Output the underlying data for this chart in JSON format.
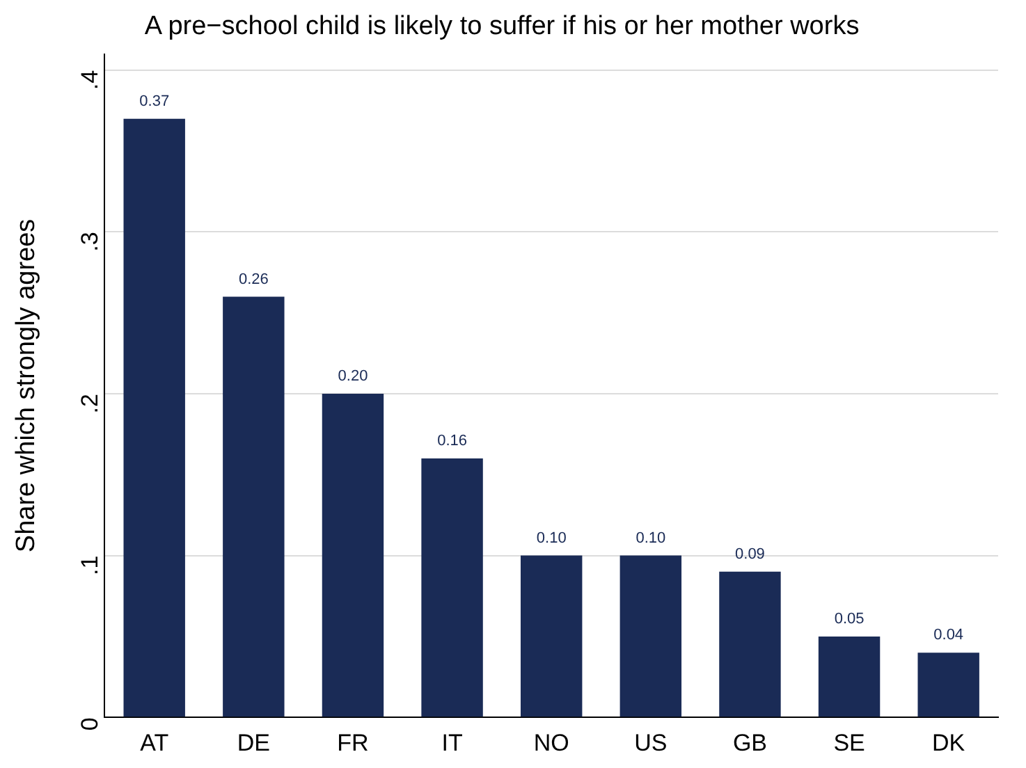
{
  "chart_data": {
    "type": "bar",
    "title": "A pre−school child is likely to suffer if his or her mother works",
    "ylabel": "Share which strongly agrees",
    "categories": [
      "AT",
      "DE",
      "FR",
      "IT",
      "NO",
      "US",
      "GB",
      "SE",
      "DK"
    ],
    "values": [
      0.37,
      0.26,
      0.2,
      0.16,
      0.1,
      0.1,
      0.09,
      0.05,
      0.04
    ],
    "value_labels": [
      "0.37",
      "0.26",
      "0.20",
      "0.16",
      "0.10",
      "0.10",
      "0.09",
      "0.05",
      "0.04"
    ],
    "color": "#1a2b56",
    "ylim": [
      0,
      0.41
    ],
    "yticks": [
      0,
      {
        "value": 0.1,
        "label": ".1"
      },
      {
        "value": 0.2,
        "label": ".2"
      },
      {
        "value": 0.3,
        "label": ".3"
      },
      {
        "value": 0.4,
        "label": ".4"
      }
    ],
    "grid": "y",
    "legend": false
  }
}
